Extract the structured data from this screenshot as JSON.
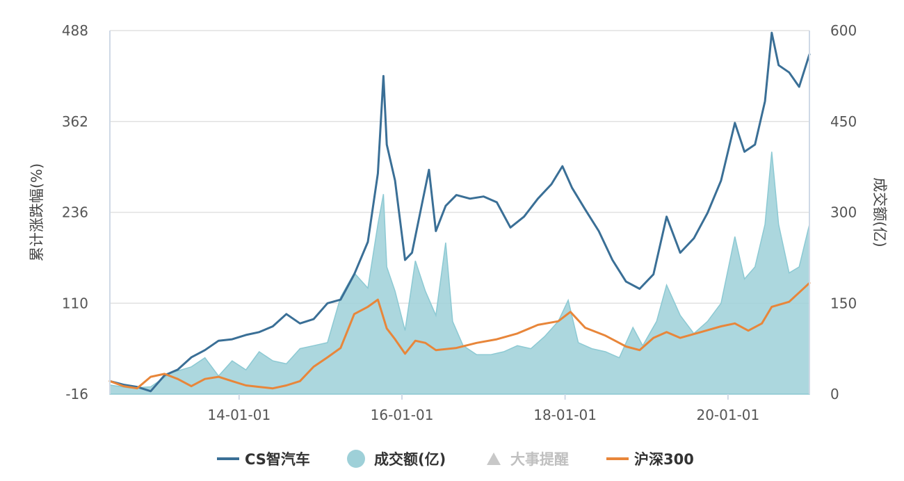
{
  "chart_data": {
    "type": "line",
    "x_ticks": [
      "14-01-01",
      "16-01-01",
      "18-01-01",
      "20-01-01"
    ],
    "x_range": [
      "2012-06-01",
      "2020-12-31"
    ],
    "y_left": {
      "label": "累计涨跌幅(%)",
      "ticks": [
        -16,
        110,
        236,
        362,
        488
      ],
      "range": [
        -16,
        488
      ]
    },
    "y_right": {
      "label": "成交额(亿)",
      "ticks": [
        0,
        150,
        300,
        450,
        600
      ],
      "range": [
        0,
        600
      ]
    },
    "legend": [
      "CS智汽车",
      "成交额(亿)",
      "大事提醒",
      "沪深300"
    ],
    "legend_placement": "bottom",
    "grid": true,
    "colors": {
      "cs": "#3a6f96",
      "volume": "#9ed0d8",
      "volume_line": "#8cc9d3",
      "hs300": "#e8863a",
      "events": "#c8c8c8",
      "grid": "#e1e1e1",
      "axis": "#cfd9e6"
    },
    "series": [
      {
        "name": "CS智汽车",
        "axis": "left",
        "points": [
          [
            "2012-06-01",
            2
          ],
          [
            "2012-08-01",
            -3
          ],
          [
            "2012-10-01",
            -6
          ],
          [
            "2012-12-01",
            -12
          ],
          [
            "2013-02-01",
            10
          ],
          [
            "2013-04-01",
            18
          ],
          [
            "2013-06-01",
            35
          ],
          [
            "2013-08-01",
            45
          ],
          [
            "2013-10-01",
            58
          ],
          [
            "2013-12-01",
            60
          ],
          [
            "2014-02-01",
            66
          ],
          [
            "2014-04-01",
            70
          ],
          [
            "2014-06-01",
            78
          ],
          [
            "2014-08-01",
            95
          ],
          [
            "2014-10-01",
            82
          ],
          [
            "2014-12-01",
            88
          ],
          [
            "2015-02-01",
            110
          ],
          [
            "2015-04-01",
            115
          ],
          [
            "2015-06-01",
            150
          ],
          [
            "2015-08-01",
            195
          ],
          [
            "2015-09-15",
            290
          ],
          [
            "2015-10-10",
            425
          ],
          [
            "2015-10-25",
            330
          ],
          [
            "2015-12-01",
            280
          ],
          [
            "2016-01-15",
            170
          ],
          [
            "2016-02-15",
            180
          ],
          [
            "2016-04-01",
            250
          ],
          [
            "2016-05-01",
            295
          ],
          [
            "2016-06-01",
            210
          ],
          [
            "2016-07-15",
            245
          ],
          [
            "2016-09-01",
            260
          ],
          [
            "2016-11-01",
            255
          ],
          [
            "2017-01-01",
            258
          ],
          [
            "2017-03-01",
            250
          ],
          [
            "2017-05-01",
            215
          ],
          [
            "2017-07-01",
            230
          ],
          [
            "2017-09-01",
            255
          ],
          [
            "2017-11-01",
            275
          ],
          [
            "2017-12-20",
            300
          ],
          [
            "2018-02-01",
            270
          ],
          [
            "2018-04-01",
            240
          ],
          [
            "2018-06-01",
            210
          ],
          [
            "2018-08-01",
            170
          ],
          [
            "2018-10-01",
            140
          ],
          [
            "2018-12-01",
            130
          ],
          [
            "2019-02-01",
            150
          ],
          [
            "2019-04-01",
            230
          ],
          [
            "2019-06-01",
            180
          ],
          [
            "2019-08-01",
            200
          ],
          [
            "2019-10-01",
            235
          ],
          [
            "2019-12-01",
            280
          ],
          [
            "2020-02-01",
            360
          ],
          [
            "2020-03-15",
            320
          ],
          [
            "2020-05-01",
            330
          ],
          [
            "2020-06-15",
            390
          ],
          [
            "2020-07-15",
            485
          ],
          [
            "2020-08-15",
            440
          ],
          [
            "2020-10-01",
            430
          ],
          [
            "2020-11-15",
            410
          ],
          [
            "2020-12-31",
            455
          ]
        ]
      },
      {
        "name": "沪深300",
        "axis": "left",
        "points": [
          [
            "2012-06-01",
            2
          ],
          [
            "2012-08-01",
            -5
          ],
          [
            "2012-10-01",
            -8
          ],
          [
            "2012-12-01",
            8
          ],
          [
            "2013-02-01",
            12
          ],
          [
            "2013-04-01",
            5
          ],
          [
            "2013-06-01",
            -5
          ],
          [
            "2013-08-01",
            5
          ],
          [
            "2013-10-01",
            8
          ],
          [
            "2013-12-01",
            2
          ],
          [
            "2014-02-01",
            -4
          ],
          [
            "2014-04-01",
            -6
          ],
          [
            "2014-06-01",
            -8
          ],
          [
            "2014-08-01",
            -4
          ],
          [
            "2014-10-01",
            2
          ],
          [
            "2014-12-01",
            22
          ],
          [
            "2015-02-01",
            35
          ],
          [
            "2015-04-01",
            48
          ],
          [
            "2015-06-01",
            95
          ],
          [
            "2015-08-01",
            105
          ],
          [
            "2015-09-15",
            115
          ],
          [
            "2015-10-25",
            75
          ],
          [
            "2015-12-01",
            60
          ],
          [
            "2016-01-15",
            40
          ],
          [
            "2016-03-01",
            58
          ],
          [
            "2016-04-15",
            55
          ],
          [
            "2016-06-01",
            45
          ],
          [
            "2016-09-01",
            48
          ],
          [
            "2016-12-01",
            55
          ],
          [
            "2017-03-01",
            60
          ],
          [
            "2017-06-01",
            68
          ],
          [
            "2017-09-01",
            80
          ],
          [
            "2017-12-01",
            85
          ],
          [
            "2018-01-25",
            98
          ],
          [
            "2018-04-01",
            76
          ],
          [
            "2018-07-01",
            65
          ],
          [
            "2018-10-01",
            50
          ],
          [
            "2018-12-01",
            45
          ],
          [
            "2019-02-01",
            62
          ],
          [
            "2019-04-01",
            70
          ],
          [
            "2019-06-01",
            62
          ],
          [
            "2019-09-01",
            70
          ],
          [
            "2019-12-01",
            78
          ],
          [
            "2020-02-01",
            82
          ],
          [
            "2020-04-01",
            72
          ],
          [
            "2020-06-01",
            82
          ],
          [
            "2020-07-15",
            105
          ],
          [
            "2020-10-01",
            112
          ],
          [
            "2020-12-31",
            138
          ]
        ]
      },
      {
        "name": "成交额(亿)",
        "axis": "right",
        "type": "area",
        "points": [
          [
            "2012-06-01",
            15
          ],
          [
            "2012-09-01",
            10
          ],
          [
            "2012-12-01",
            12
          ],
          [
            "2013-03-01",
            35
          ],
          [
            "2013-06-01",
            45
          ],
          [
            "2013-08-01",
            60
          ],
          [
            "2013-10-01",
            30
          ],
          [
            "2013-12-01",
            55
          ],
          [
            "2014-02-01",
            40
          ],
          [
            "2014-04-01",
            70
          ],
          [
            "2014-06-01",
            55
          ],
          [
            "2014-08-01",
            50
          ],
          [
            "2014-10-01",
            75
          ],
          [
            "2014-12-01",
            80
          ],
          [
            "2015-02-01",
            85
          ],
          [
            "2015-04-01",
            160
          ],
          [
            "2015-06-01",
            200
          ],
          [
            "2015-08-01",
            175
          ],
          [
            "2015-09-15",
            280
          ],
          [
            "2015-10-10",
            330
          ],
          [
            "2015-10-25",
            210
          ],
          [
            "2015-12-01",
            170
          ],
          [
            "2016-01-15",
            105
          ],
          [
            "2016-03-01",
            220
          ],
          [
            "2016-04-15",
            170
          ],
          [
            "2016-06-01",
            130
          ],
          [
            "2016-07-15",
            250
          ],
          [
            "2016-08-15",
            120
          ],
          [
            "2016-10-01",
            80
          ],
          [
            "2016-12-01",
            65
          ],
          [
            "2017-02-01",
            65
          ],
          [
            "2017-04-01",
            70
          ],
          [
            "2017-06-01",
            80
          ],
          [
            "2017-08-01",
            75
          ],
          [
            "2017-10-01",
            95
          ],
          [
            "2017-12-01",
            120
          ],
          [
            "2018-01-15",
            155
          ],
          [
            "2018-03-01",
            85
          ],
          [
            "2018-05-01",
            75
          ],
          [
            "2018-07-01",
            70
          ],
          [
            "2018-09-01",
            60
          ],
          [
            "2018-11-01",
            110
          ],
          [
            "2018-12-15",
            80
          ],
          [
            "2019-02-15",
            120
          ],
          [
            "2019-04-01",
            180
          ],
          [
            "2019-06-01",
            130
          ],
          [
            "2019-08-01",
            100
          ],
          [
            "2019-10-01",
            120
          ],
          [
            "2019-12-01",
            150
          ],
          [
            "2020-02-01",
            260
          ],
          [
            "2020-03-15",
            190
          ],
          [
            "2020-05-01",
            210
          ],
          [
            "2020-06-15",
            280
          ],
          [
            "2020-07-15",
            400
          ],
          [
            "2020-08-15",
            280
          ],
          [
            "2020-10-01",
            200
          ],
          [
            "2020-11-15",
            210
          ],
          [
            "2020-12-31",
            280
          ]
        ]
      }
    ]
  }
}
